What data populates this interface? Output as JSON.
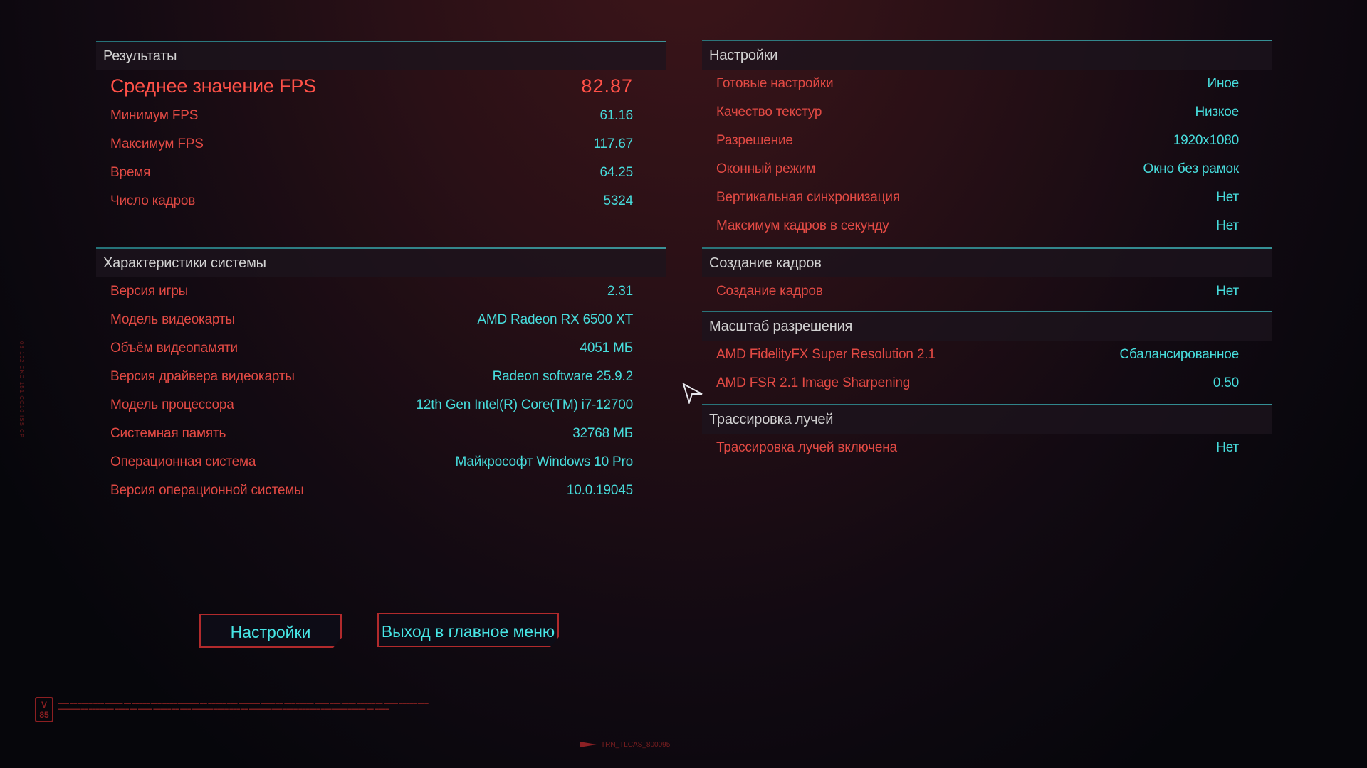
{
  "results": {
    "title": "Результаты",
    "average": {
      "label": "Среднее значение FPS",
      "value": "82.87"
    },
    "rows": [
      {
        "label": "Минимум FPS",
        "value": "61.16"
      },
      {
        "label": "Максимум FPS",
        "value": "117.67"
      },
      {
        "label": "Время",
        "value": "64.25"
      },
      {
        "label": "Число кадров",
        "value": "5324"
      }
    ]
  },
  "system": {
    "title": "Характеристики системы",
    "rows": [
      {
        "label": "Версия игры",
        "value": "2.31"
      },
      {
        "label": "Модель видеокарты",
        "value": "AMD Radeon RX 6500 XT"
      },
      {
        "label": "Объём видеопамяти",
        "value": "4051 МБ"
      },
      {
        "label": "Версия драйвера видеокарты",
        "value": "Radeon software 25.9.2"
      },
      {
        "label": "Модель процессора",
        "value": "12th Gen Intel(R) Core(TM) i7-12700"
      },
      {
        "label": "Системная память",
        "value": "32768 МБ"
      },
      {
        "label": "Операционная система",
        "value": "Майкрософт Windows 10 Pro"
      },
      {
        "label": "Версия операционной системы",
        "value": "10.0.19045"
      }
    ]
  },
  "settings": {
    "title": "Настройки",
    "rows": [
      {
        "label": "Готовые настройки",
        "value": "Иное"
      },
      {
        "label": "Качество текстур",
        "value": "Низкое"
      },
      {
        "label": "Разрешение",
        "value": "1920x1080"
      },
      {
        "label": "Оконный режим",
        "value": "Окно без рамок"
      },
      {
        "label": "Вертикальная синхронизация",
        "value": "Нет"
      },
      {
        "label": "Максимум кадров в секунду",
        "value": "Нет"
      }
    ]
  },
  "frame_generation": {
    "title": "Создание кадров",
    "rows": [
      {
        "label": "Создание кадров",
        "value": "Нет"
      }
    ]
  },
  "resolution_scaling": {
    "title": "Масштаб разрешения",
    "rows": [
      {
        "label": "AMD FidelityFX Super Resolution 2.1",
        "value": "Сбалансированное"
      },
      {
        "label": "AMD FSR 2.1 Image Sharpening",
        "value": "0.50"
      }
    ]
  },
  "ray_tracing": {
    "title": "Трассировка лучей",
    "rows": [
      {
        "label": "Трассировка лучей включена",
        "value": "Нет"
      }
    ]
  },
  "buttons": {
    "settings": "Настройки",
    "exit": "Выход в главное меню"
  },
  "footer": {
    "badge": "V 85",
    "side_code": "08 102 CKC 151 CC10 ISS CP",
    "trn_code": "TRN_TLCAS_800095"
  },
  "colors": {
    "label": "#e24a44",
    "value": "#47dcdc",
    "accent_line": "#3fb3b8",
    "button_border": "#b12a2c"
  }
}
